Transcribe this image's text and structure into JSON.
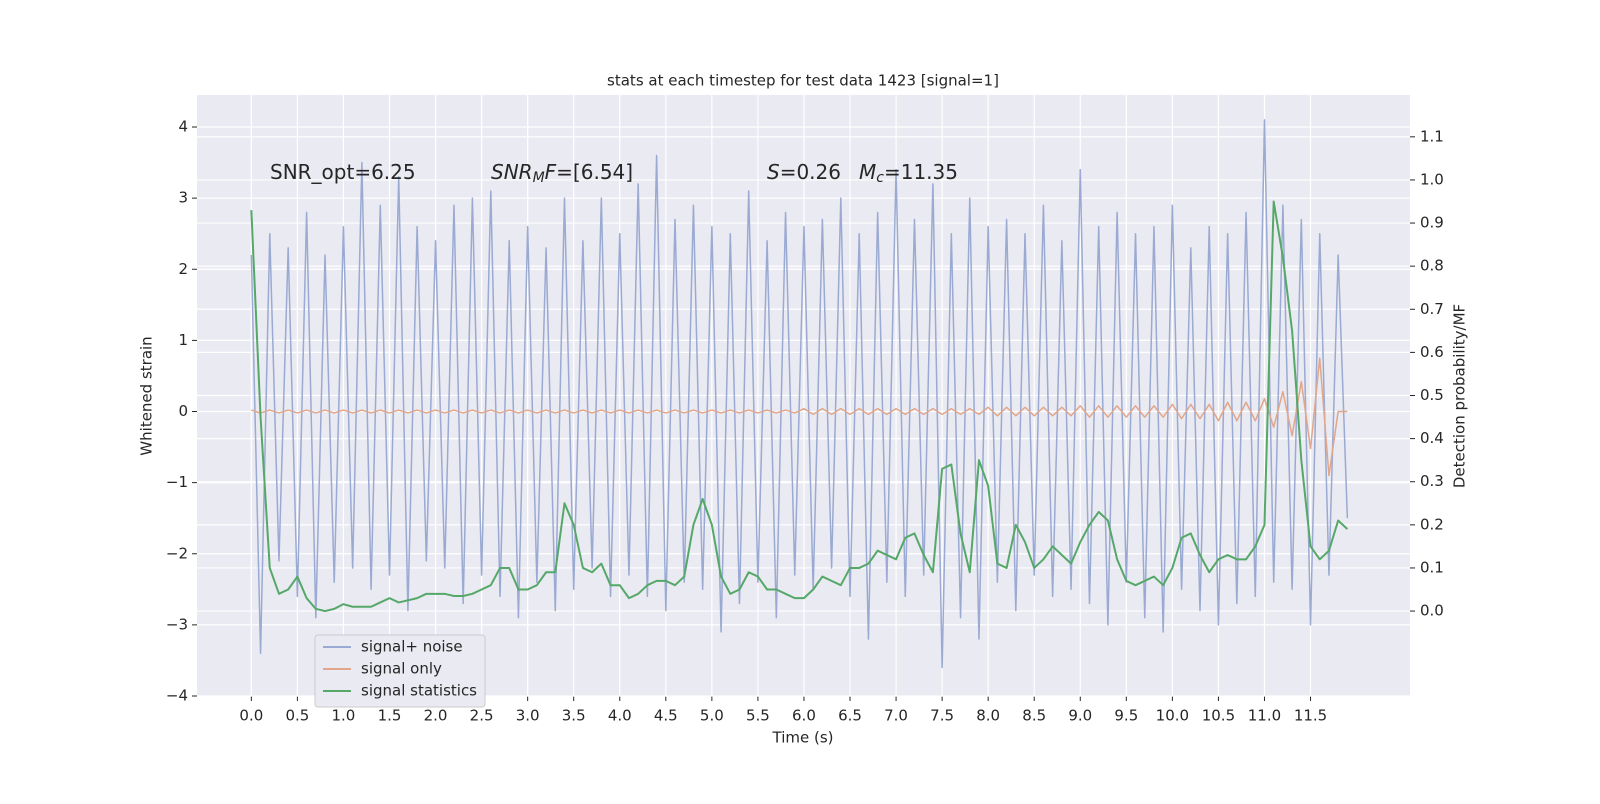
{
  "chart_data": {
    "type": "line",
    "title": "stats at each timestep for test data 1423 [signal=1]",
    "xlabel": "Time (s)",
    "ylabel": "Whitened strain",
    "y2label": "Detection probability/MF",
    "annotations": [
      {
        "parts": [
          {
            "text": "SNR_opt=6.25",
            "style": "normal"
          }
        ]
      },
      {
        "parts": [
          {
            "text": "SNR",
            "style": "italic"
          },
          {
            "text": "M",
            "style": "sub"
          },
          {
            "text": "F",
            "style": "italic"
          },
          {
            "text": "=[6.54]",
            "style": "normal"
          }
        ]
      },
      {
        "parts": [
          {
            "text": "S",
            "style": "italic"
          },
          {
            "text": "=0.26",
            "style": "normal"
          }
        ]
      },
      {
        "parts": [
          {
            "text": "M",
            "style": "italic"
          },
          {
            "text": "c",
            "style": "sub"
          },
          {
            "text": "=11.35",
            "style": "normal"
          }
        ]
      }
    ],
    "x": [
      0,
      0.1,
      0.2,
      0.3,
      0.4,
      0.5,
      0.6,
      0.7,
      0.8,
      0.9,
      1,
      1.1,
      1.2,
      1.3,
      1.4,
      1.5,
      1.6,
      1.7,
      1.8,
      1.9,
      2,
      2.1,
      2.2,
      2.3,
      2.4,
      2.5,
      2.6,
      2.7,
      2.8,
      2.9,
      3,
      3.1,
      3.2,
      3.3,
      3.4,
      3.5,
      3.6,
      3.7,
      3.8,
      3.9,
      4,
      4.1,
      4.2,
      4.3,
      4.4,
      4.5,
      4.6,
      4.7,
      4.8,
      4.9,
      5,
      5.1,
      5.2,
      5.3,
      5.4,
      5.5,
      5.6,
      5.7,
      5.8,
      5.9,
      6,
      6.1,
      6.2,
      6.3,
      6.4,
      6.5,
      6.6,
      6.7,
      6.8,
      6.9,
      7,
      7.1,
      7.2,
      7.3,
      7.4,
      7.5,
      7.6,
      7.7,
      7.8,
      7.9,
      8,
      8.1,
      8.2,
      8.3,
      8.4,
      8.5,
      8.6,
      8.7,
      8.8,
      8.9,
      9,
      9.1,
      9.2,
      9.3,
      9.4,
      9.5,
      9.6,
      9.7,
      9.8,
      9.9,
      10,
      10.1,
      10.2,
      10.3,
      10.4,
      10.5,
      10.6,
      10.7,
      10.8,
      10.9,
      11,
      11.1,
      11.2,
      11.3,
      11.4,
      11.5,
      11.6,
      11.7,
      11.8,
      11.9
    ],
    "series": [
      {
        "name": "signal+ noise",
        "color": "#9aaad2",
        "values": [
          2.2,
          -3.4,
          2.5,
          -2.1,
          2.3,
          -2.6,
          2.8,
          -2.9,
          2.2,
          -2.4,
          2.6,
          -2.2,
          3.5,
          -2.5,
          2.9,
          -2.3,
          3.3,
          -2.8,
          2.6,
          -2.1,
          2.4,
          -2.2,
          2.9,
          -2.7,
          3.0,
          -2.3,
          3.1,
          -2.6,
          2.4,
          -2.9,
          2.6,
          -2.4,
          2.3,
          -2.8,
          3.0,
          -2.5,
          2.4,
          -2.2,
          3.0,
          -2.6,
          2.5,
          -2.3,
          3.2,
          -2.6,
          3.6,
          -2.8,
          2.7,
          -2.4,
          2.9,
          -2.5,
          2.6,
          -3.1,
          2.5,
          -2.7,
          3.1,
          -2.4,
          2.4,
          -2.9,
          2.8,
          -2.3,
          2.6,
          -2.5,
          2.7,
          -2.2,
          3.0,
          -2.6,
          2.5,
          -3.2,
          2.8,
          -2.4,
          3.4,
          -2.6,
          2.7,
          -2.3,
          3.2,
          -3.6,
          2.5,
          -2.9,
          3.0,
          -3.2,
          2.6,
          -2.4,
          2.7,
          -2.8,
          2.5,
          -2.3,
          2.9,
          -2.6,
          2.4,
          -2.5,
          3.4,
          -2.7,
          2.6,
          -3.0,
          2.8,
          -2.4,
          2.5,
          -2.9,
          2.6,
          -3.1,
          2.9,
          -2.5,
          2.3,
          -2.8,
          2.6,
          -3.0,
          2.5,
          -2.7,
          2.8,
          -2.6,
          4.1,
          -2.4,
          2.9,
          -2.5,
          2.7,
          -3.0,
          2.5,
          -2.3,
          2.2,
          -1.5
        ]
      },
      {
        "name": "signal only",
        "color": "#e2a68a",
        "values": [
          0.02,
          -0.02,
          0.02,
          -0.02,
          0.02,
          -0.02,
          0.02,
          -0.02,
          0.02,
          -0.02,
          0.02,
          -0.02,
          0.02,
          -0.02,
          0.02,
          -0.02,
          0.02,
          -0.02,
          0.02,
          -0.02,
          0.02,
          -0.02,
          0.02,
          -0.02,
          0.02,
          -0.02,
          0.02,
          -0.02,
          0.02,
          -0.02,
          0.02,
          -0.02,
          0.02,
          -0.02,
          0.02,
          -0.02,
          0.02,
          -0.02,
          0.02,
          -0.02,
          0.02,
          -0.02,
          0.02,
          -0.02,
          0.02,
          -0.02,
          0.02,
          -0.02,
          0.02,
          -0.02,
          0.02,
          -0.02,
          0.02,
          -0.02,
          0.02,
          -0.02,
          0.02,
          -0.02,
          0.02,
          -0.02,
          0.04,
          -0.04,
          0.04,
          -0.04,
          0.04,
          -0.04,
          0.04,
          -0.04,
          0.04,
          -0.04,
          0.04,
          -0.04,
          0.04,
          -0.04,
          0.04,
          -0.04,
          0.04,
          -0.04,
          0.04,
          -0.04,
          0.06,
          -0.06,
          0.06,
          -0.06,
          0.06,
          -0.06,
          0.06,
          -0.06,
          0.06,
          -0.06,
          0.08,
          -0.08,
          0.08,
          -0.08,
          0.08,
          -0.08,
          0.08,
          -0.08,
          0.08,
          -0.08,
          0.1,
          -0.1,
          0.1,
          -0.1,
          0.1,
          -0.13,
          0.13,
          -0.13,
          0.13,
          -0.13,
          0.18,
          -0.22,
          0.28,
          -0.34,
          0.42,
          -0.52,
          0.75,
          -0.9,
          0,
          0
        ]
      },
      {
        "name": "signal statistics",
        "color": "#55a868",
        "axis": "y2",
        "values": [
          0.93,
          0.45,
          0.1,
          0.04,
          0.05,
          0.08,
          0.03,
          0.005,
          0,
          0.005,
          0.016,
          0.01,
          0.01,
          0.01,
          0.02,
          0.03,
          0.02,
          0.025,
          0.03,
          0.04,
          0.04,
          0.04,
          0.035,
          0.035,
          0.04,
          0.05,
          0.06,
          0.1,
          0.1,
          0.05,
          0.05,
          0.06,
          0.09,
          0.09,
          0.25,
          0.2,
          0.1,
          0.09,
          0.11,
          0.06,
          0.06,
          0.03,
          0.04,
          0.06,
          0.07,
          0.07,
          0.06,
          0.08,
          0.2,
          0.26,
          0.2,
          0.08,
          0.04,
          0.05,
          0.09,
          0.08,
          0.05,
          0.05,
          0.04,
          0.03,
          0.03,
          0.05,
          0.08,
          0.07,
          0.06,
          0.1,
          0.1,
          0.11,
          0.14,
          0.13,
          0.12,
          0.17,
          0.18,
          0.13,
          0.09,
          0.33,
          0.34,
          0.18,
          0.09,
          0.35,
          0.29,
          0.11,
          0.1,
          0.2,
          0.16,
          0.1,
          0.12,
          0.15,
          0.13,
          0.11,
          0.16,
          0.2,
          0.23,
          0.21,
          0.12,
          0.07,
          0.06,
          0.07,
          0.08,
          0.06,
          0.1,
          0.17,
          0.18,
          0.13,
          0.09,
          0.12,
          0.13,
          0.12,
          0.12,
          0.15,
          0.2,
          0.95,
          0.82,
          0.65,
          0.35,
          0.15,
          0.12,
          0.14,
          0.21,
          0.19
        ]
      }
    ],
    "xlim": [
      -0.59,
      12.58
    ],
    "xticks": [
      {
        "value": 0,
        "label": "0.0"
      },
      0.5,
      {
        "value": 1,
        "label": "1.0"
      },
      1.5,
      {
        "value": 2,
        "label": "2.0"
      },
      2.5,
      {
        "value": 3,
        "label": "3.0"
      },
      3.5,
      {
        "value": 4,
        "label": "4.0"
      },
      4.5,
      {
        "value": 5,
        "label": "5.0"
      },
      5.5,
      {
        "value": 6,
        "label": "6.0"
      },
      6.5,
      {
        "value": 7,
        "label": "7.0"
      },
      7.5,
      {
        "value": 8,
        "label": "8.0"
      },
      8.5,
      {
        "value": 9,
        "label": "9.0"
      },
      9.5,
      {
        "value": 10,
        "label": "10.0"
      },
      10.5,
      {
        "value": 11,
        "label": "11.0"
      },
      11.5
    ],
    "ylim": [
      -4,
      4.45
    ],
    "yticks": [
      {
        "value": -4,
        "label": "−4"
      },
      {
        "value": -3,
        "label": "−3"
      },
      {
        "value": -2,
        "label": "−2"
      },
      {
        "value": -1,
        "label": "−1"
      },
      0,
      1,
      2,
      3,
      4
    ],
    "y2lim": [
      -0.197,
      1.197
    ],
    "y2ticks": [
      {
        "value": 0,
        "label": "0.0"
      },
      0.1,
      0.2,
      0.3,
      0.4,
      0.5,
      0.6,
      0.7,
      0.8,
      0.9,
      {
        "value": 1,
        "label": "1.0"
      },
      1.1
    ],
    "grid": true,
    "legend": "lower left"
  }
}
